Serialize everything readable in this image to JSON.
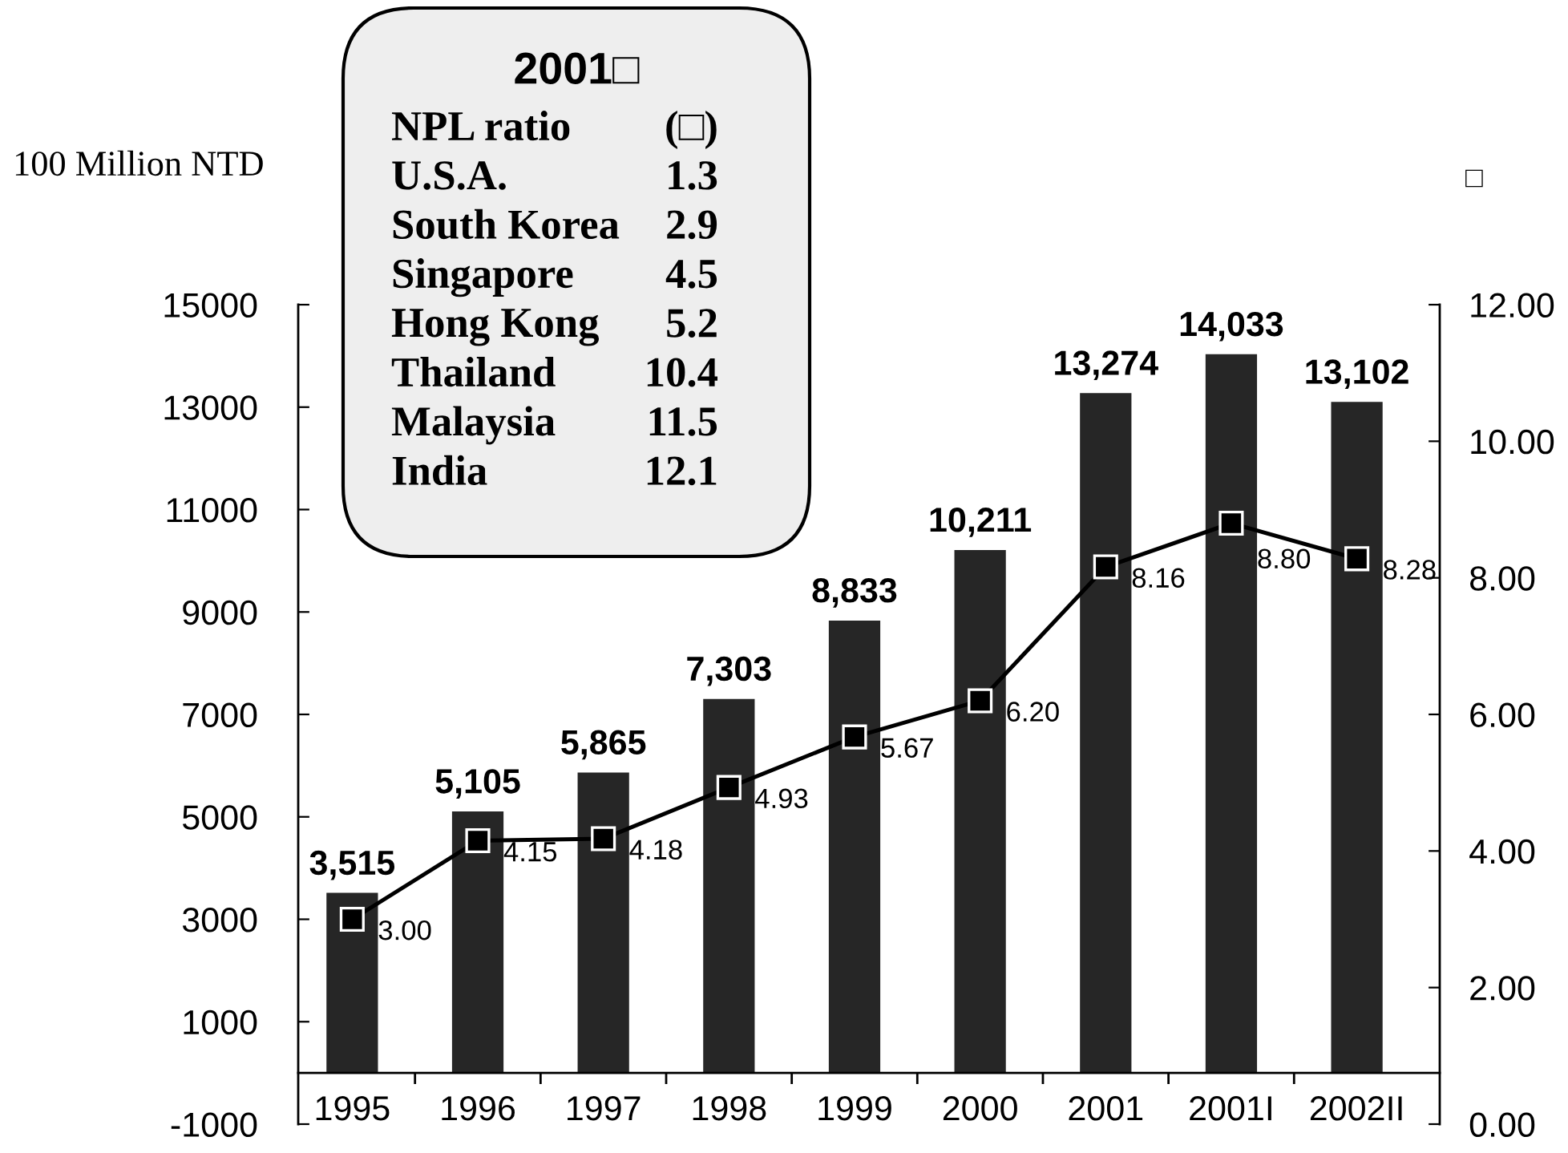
{
  "chart_data": {
    "type": "bar",
    "categories": [
      "1995",
      "1996",
      "1997",
      "1998",
      "1999",
      "2000",
      "2001",
      "2001I",
      "2002II"
    ],
    "ylabel": "100 Million NTD",
    "y2label": "□",
    "ylim": [
      -1000,
      15000
    ],
    "yticks": [
      -1000,
      1000,
      3000,
      5000,
      7000,
      9000,
      11000,
      13000,
      15000
    ],
    "y2lim": [
      0,
      12
    ],
    "y2ticks": [
      {
        "value": 0,
        "label": "0.00"
      },
      {
        "value": 2,
        "label": "2.00"
      },
      {
        "value": 4,
        "label": "4.00"
      },
      {
        "value": 6,
        "label": "6.00"
      },
      {
        "value": 8,
        "label": "8.00"
      },
      {
        "value": 10,
        "label": "10.00"
      },
      {
        "value": 12,
        "label": "12.00"
      }
    ],
    "series": [
      {
        "color": "#262626",
        "values": [
          3515,
          5105,
          5865,
          7303,
          8833,
          10211,
          13274,
          14033,
          13102
        ],
        "value_labels": [
          "3,515",
          "5,105",
          "5,865",
          "7,303",
          "8,833",
          "10,211",
          "13,274",
          "14,033",
          "13,102"
        ]
      },
      {
        "type": "line",
        "axis": "y2",
        "color": "#000000",
        "marker": "square",
        "values": [
          3.0,
          4.15,
          4.18,
          4.93,
          5.67,
          6.2,
          8.16,
          8.8,
          8.28
        ],
        "value_labels": [
          "3.00",
          "4.15",
          "4.18",
          "4.93",
          "5.67",
          "6.20",
          "8.16",
          "8.80",
          "8.28"
        ]
      }
    ],
    "annotations": [
      "2001□",
      "NPL ratio (□)",
      "U.S.A. 1.3",
      "South Korea 2.9",
      "Singapore 4.5",
      "Hong Kong 5.2",
      "Thailand 10.4",
      "Malaysia 11.5",
      "India 12.1"
    ]
  }
}
